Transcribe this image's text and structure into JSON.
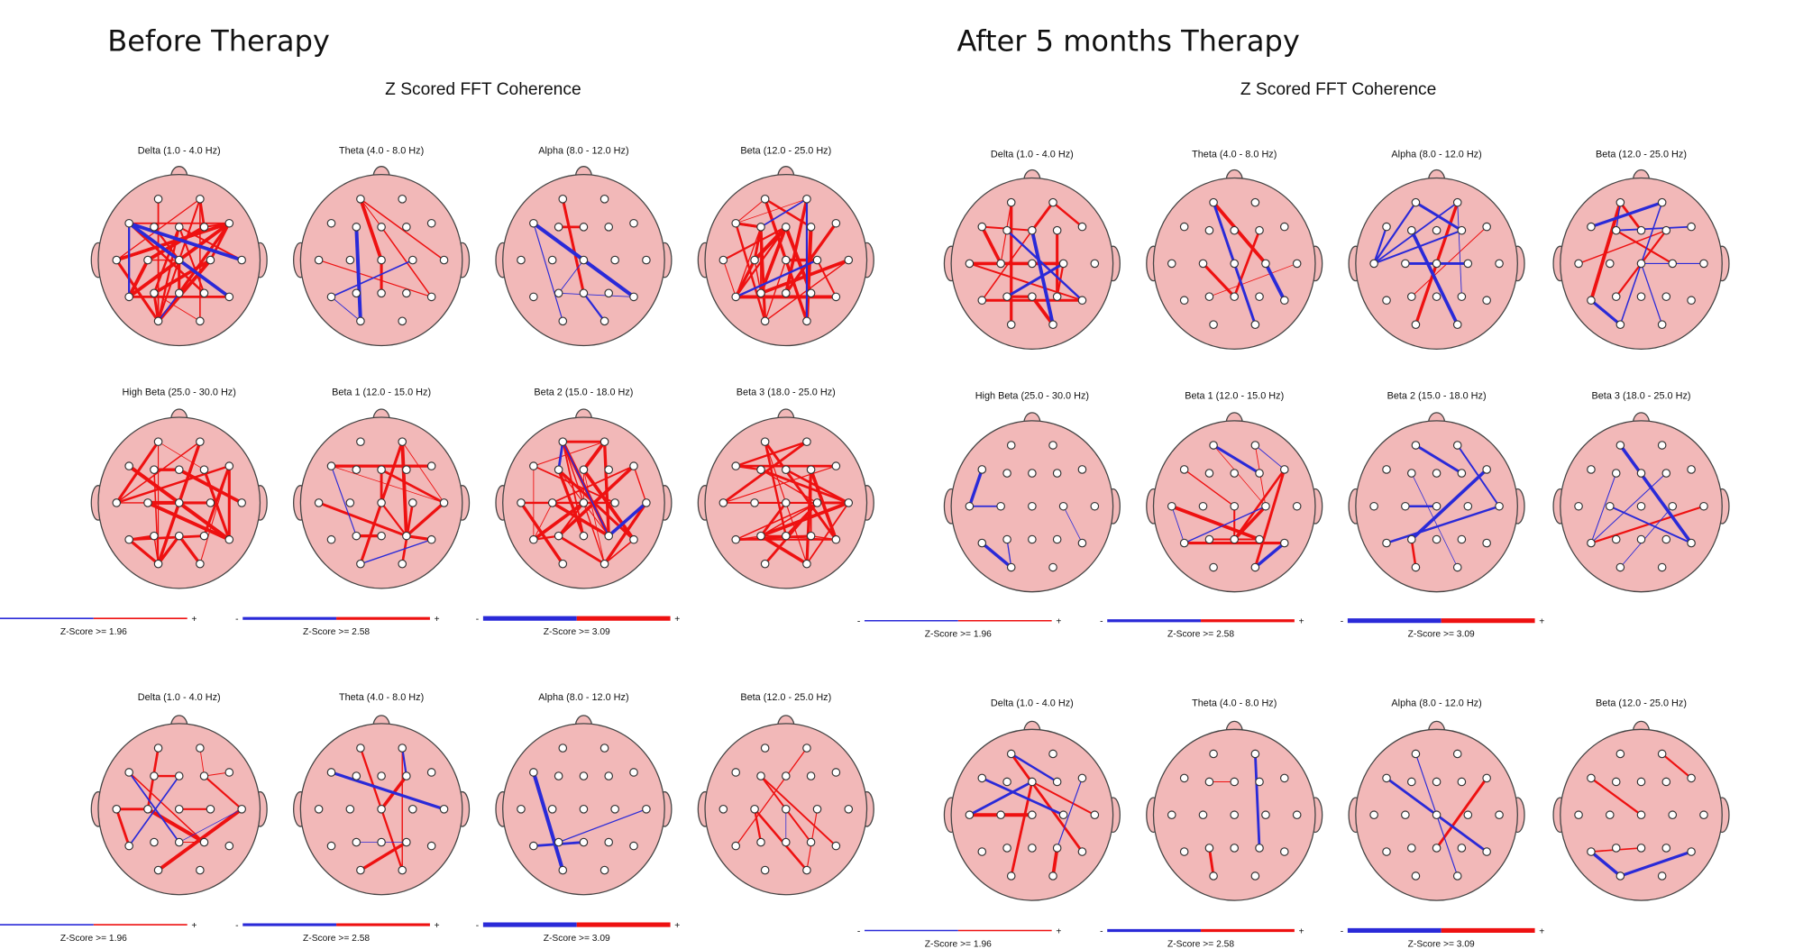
{
  "panels": [
    {
      "title": "Before Therapy",
      "subtitle": "Z Scored FFT Coherence",
      "rows": [
        [
          "Delta (1.0 - 4.0 Hz)",
          "Theta (4.0 - 8.0 Hz)",
          "Alpha (8.0 - 12.0 Hz)",
          "Beta (12.0 - 25.0 Hz)"
        ],
        [
          "High Beta (25.0 - 30.0 Hz)",
          "Beta 1 (12.0 - 15.0 Hz)",
          "Beta 2 (15.0 - 18.0 Hz)",
          "Beta 3 (18.0 - 25.0 Hz)"
        ],
        [
          "Delta (1.0 - 4.0 Hz)",
          "Theta (4.0 - 8.0 Hz)",
          "Alpha (8.0 - 12.0 Hz)",
          "Beta (12.0 - 25.0 Hz)"
        ]
      ],
      "legend_minus": "-",
      "legend_plus": "+",
      "legends": [
        "Z-Score >= 1.96",
        "Z-Score >= 2.58",
        "Z-Score >= 3.09"
      ]
    },
    {
      "title": "After 5 months Therapy",
      "subtitle": "Z Scored FFT Coherence",
      "rows": [
        [
          "Delta (1.0 - 4.0 Hz)",
          "Theta (4.0 - 8.0 Hz)",
          "Alpha (8.0 - 12.0 Hz)",
          "Beta (12.0 - 25.0 Hz)"
        ],
        [
          "High Beta (25.0 - 30.0 Hz)",
          "Beta 1 (12.0 - 15.0 Hz)",
          "Beta 2 (15.0 - 18.0 Hz)",
          "Beta 3 (18.0 - 25.0 Hz)"
        ],
        [
          "Delta (1.0 - 4.0 Hz)",
          "Theta (4.0 - 8.0 Hz)",
          "Alpha (8.0 - 12.0 Hz)",
          "Beta (12.0 - 25.0 Hz)"
        ]
      ],
      "legend_minus": "-",
      "legend_plus": "+",
      "legends": [
        "Z-Score >= 1.96",
        "Z-Score >= 2.58",
        "Z-Score >= 3.09"
      ]
    }
  ]
}
